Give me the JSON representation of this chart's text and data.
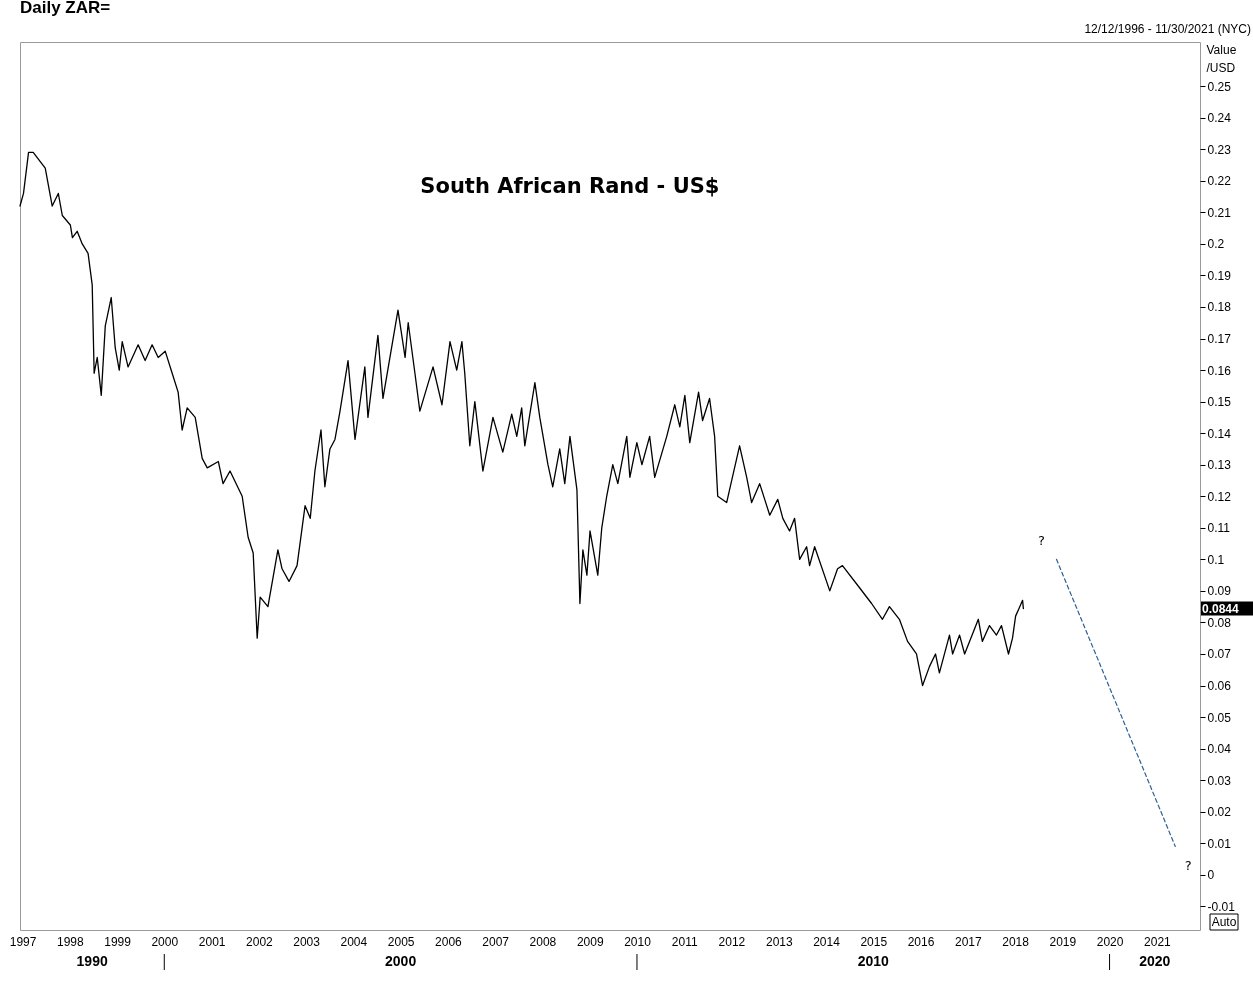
{
  "chart_data": {
    "type": "line",
    "title": "Daily ZAR=",
    "subtitle": "South African Rand - US$",
    "ylabel": "Value /USD",
    "xlim": [
      "1996-12-12",
      "2021-11-30"
    ],
    "xticks": [
      "1997",
      "1998",
      "1999",
      "2000",
      "2001",
      "2002",
      "2003",
      "2004",
      "2005",
      "2006",
      "2007",
      "2008",
      "2009",
      "2010",
      "2011",
      "2012",
      "2013",
      "2014",
      "2015",
      "2016",
      "2017",
      "2018",
      "2019",
      "2020",
      "2021"
    ],
    "ylim": [
      -0.0175,
      0.264
    ],
    "yticks": [
      -0.01,
      0,
      0.01,
      0.02,
      0.03,
      0.04,
      0.05,
      0.06,
      0.07,
      0.08,
      0.09,
      0.1,
      0.11,
      0.12,
      0.13,
      0.14,
      0.15,
      0.16,
      0.17,
      0.18,
      0.19,
      0.2,
      0.21,
      0.22,
      0.23,
      0.24,
      0.25
    ],
    "series": [
      {
        "color": "#000000",
        "x": [
          "1996-12-12",
          "1997-01-08",
          "1997-02-16",
          "1997-03-24",
          "1997-06-25",
          "1997-08-18",
          "1997-10-04",
          "1997-11-04",
          "1998-01-05",
          "1998-01-21",
          "1998-02-27",
          "1998-04-07",
          "1998-05-22",
          "1998-06-23",
          "1998-07-08",
          "1998-08-01",
          "1998-09-01",
          "1998-10-02",
          "1998-11-17",
          "1998-12-18",
          "1999-01-18",
          "1999-02-10",
          "1999-03-27",
          "1999-06-13",
          "1999-08-06",
          "1999-09-29",
          "1999-11-15",
          "2000-01-08",
          "2000-03-02",
          "2000-04-17",
          "2000-05-18",
          "2000-06-26",
          "2000-08-27",
          "2000-10-20",
          "2000-11-28",
          "2001-02-22",
          "2001-03-30",
          "2001-05-23",
          "2001-08-25",
          "2001-10-10",
          "2001-11-18",
          "2001-12-19",
          "2002-01-11",
          "2002-03-12",
          "2002-05-28",
          "2002-06-29",
          "2002-08-22",
          "2002-10-23",
          "2002-12-24",
          "2003-02-02",
          "2003-03-10",
          "2003-04-26",
          "2003-05-26",
          "2003-07-04",
          "2003-08-12",
          "2003-09-20",
          "2003-11-21",
          "2004-01-14",
          "2004-03-30",
          "2004-04-23",
          "2004-07-09",
          "2004-08-17",
          "2004-12-11",
          "2005-02-04",
          "2005-02-28",
          "2005-04-21",
          "2005-05-29",
          "2005-09-08",
          "2005-11-16",
          "2006-01-17",
          "2006-03-10",
          "2006-04-19",
          "2006-05-11",
          "2006-06-19",
          "2006-07-28",
          "2006-09-28",
          "2006-12-15",
          "2007-03-01",
          "2007-05-09",
          "2007-06-17",
          "2007-07-25",
          "2007-08-18",
          "2007-11-04",
          "2007-12-12",
          "2008-02-13",
          "2008-03-21",
          "2008-05-14",
          "2008-06-22",
          "2008-08-01",
          "2008-09-24",
          "2008-10-17",
          "2008-11-09",
          "2008-12-10",
          "2009-01-03",
          "2009-03-04",
          "2009-04-04",
          "2009-05-12",
          "2009-06-28",
          "2009-08-06",
          "2009-10-14",
          "2009-11-07",
          "2009-12-31",
          "2010-02-08",
          "2010-04-09",
          "2010-05-18",
          "2010-08-19",
          "2010-10-20",
          "2010-11-28",
          "2011-01-06",
          "2011-02-13",
          "2011-04-22",
          "2011-05-23",
          "2011-07-16",
          "2011-08-24",
          "2011-09-17",
          "2011-11-25",
          "2012-01-03",
          "2012-03-04",
          "2012-04-28",
          "2012-06-05",
          "2012-08-06",
          "2012-09-14",
          "2012-10-23",
          "2012-12-24",
          "2013-02-01",
          "2013-03-25",
          "2013-05-03",
          "2013-06-11",
          "2013-08-04",
          "2013-08-27",
          "2013-10-05",
          "2014-01-30",
          "2014-03-31",
          "2014-05-08",
          "2014-09-17",
          "2014-12-19",
          "2015-03-13",
          "2015-05-06",
          "2015-07-22",
          "2015-09-23",
          "2015-12-01",
          "2016-01-17",
          "2016-03-10",
          "2016-04-26",
          "2016-05-26",
          "2016-08-12",
          "2016-09-05",
          "2016-10-29",
          "2016-12-07",
          "2017-03-23",
          "2017-04-23",
          "2017-06-17",
          "2017-08-10",
          "2017-09-18",
          "2017-11-11",
          "2017-12-12",
          "2018-01-05",
          "2018-02-28",
          "2018-03-06"
        ],
        "values": [
          0.212,
          0.216,
          0.229,
          0.229,
          0.224,
          0.212,
          0.216,
          0.209,
          0.206,
          0.202,
          0.204,
          0.2,
          0.197,
          0.187,
          0.159,
          0.164,
          0.152,
          0.174,
          0.183,
          0.167,
          0.16,
          0.169,
          0.161,
          0.168,
          0.163,
          0.168,
          0.164,
          0.166,
          0.159,
          0.153,
          0.141,
          0.148,
          0.145,
          0.132,
          0.129,
          0.131,
          0.124,
          0.128,
          0.12,
          0.107,
          0.102,
          0.075,
          0.088,
          0.085,
          0.103,
          0.097,
          0.093,
          0.098,
          0.117,
          0.113,
          0.128,
          0.141,
          0.123,
          0.135,
          0.138,
          0.147,
          0.163,
          0.138,
          0.161,
          0.145,
          0.171,
          0.151,
          0.179,
          0.164,
          0.175,
          0.159,
          0.147,
          0.161,
          0.149,
          0.169,
          0.16,
          0.169,
          0.159,
          0.136,
          0.15,
          0.128,
          0.145,
          0.134,
          0.146,
          0.139,
          0.148,
          0.136,
          0.156,
          0.145,
          0.13,
          0.123,
          0.135,
          0.124,
          0.139,
          0.122,
          0.086,
          0.103,
          0.095,
          0.109,
          0.095,
          0.11,
          0.12,
          0.13,
          0.124,
          0.139,
          0.126,
          0.137,
          0.13,
          0.139,
          0.126,
          0.139,
          0.149,
          0.142,
          0.152,
          0.137,
          0.153,
          0.144,
          0.151,
          0.139,
          0.12,
          0.118,
          0.125,
          0.136,
          0.126,
          0.118,
          0.124,
          0.119,
          0.114,
          0.119,
          0.113,
          0.109,
          0.113,
          0.1,
          0.104,
          0.098,
          0.104,
          0.09,
          0.097,
          0.098,
          0.091,
          0.086,
          0.081,
          0.085,
          0.081,
          0.074,
          0.07,
          0.06,
          0.066,
          0.07,
          0.064,
          0.076,
          0.07,
          0.076,
          0.07,
          0.081,
          0.074,
          0.079,
          0.076,
          0.079,
          0.07,
          0.075,
          0.082,
          0.087,
          0.0844
        ]
      },
      {
        "type": "line",
        "color": "#2e6095",
        "line_style": "dashed",
        "x": [
          "2018-11-17",
          "2021-05-23"
        ],
        "values": [
          0.1,
          0.009
        ]
      }
    ],
    "annotations": [
      "12/12/1996 - 11/30/2021 (NYC)",
      "Auto",
      "0.0844",
      "?",
      "?",
      "1990",
      "2000",
      "2010",
      "2020"
    ]
  }
}
